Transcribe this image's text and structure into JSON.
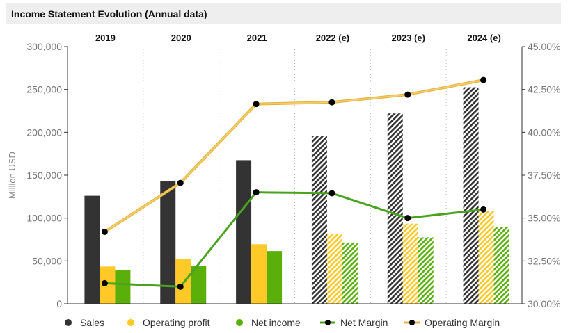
{
  "title": "Income Statement Evolution (Annual data)",
  "chart_data": {
    "type": "bar",
    "categories": [
      "2019",
      "2020",
      "2021",
      "2022 (e)",
      "2023 (e)",
      "2024 (e)"
    ],
    "estimated_from_index": 3,
    "ylabel": "Million USD",
    "ylim": [
      0,
      300000
    ],
    "y_ticks": [
      "0",
      "50,000",
      "100,000",
      "150,000",
      "200,000",
      "250,000",
      "300,000"
    ],
    "y2lim": [
      30,
      45
    ],
    "y2_ticks": [
      "30.00%",
      "32.50%",
      "35.00%",
      "37.50%",
      "40.00%",
      "42.50%",
      "45.00%"
    ],
    "legend_position": "bottom",
    "bar_series": [
      {
        "name": "Sales",
        "color": "#333333",
        "values": [
          126000,
          143500,
          167500,
          196000,
          222000,
          252500
        ]
      },
      {
        "name": "Operating profit",
        "color": "#ffc928",
        "values": [
          43500,
          52500,
          69500,
          82000,
          93500,
          108500
        ]
      },
      {
        "name": "Net income",
        "color": "#5aaf0a",
        "values": [
          39500,
          44500,
          61500,
          71500,
          77500,
          90000
        ]
      }
    ],
    "line_series": [
      {
        "name": "Net Margin",
        "color": "#4aa320",
        "values": [
          31.2,
          31.0,
          36.5,
          36.45,
          35.0,
          35.5
        ]
      },
      {
        "name": "Operating Margin",
        "color": "#f2cc6a",
        "values": [
          34.2,
          37.05,
          41.65,
          41.75,
          42.2,
          43.05
        ]
      }
    ]
  }
}
